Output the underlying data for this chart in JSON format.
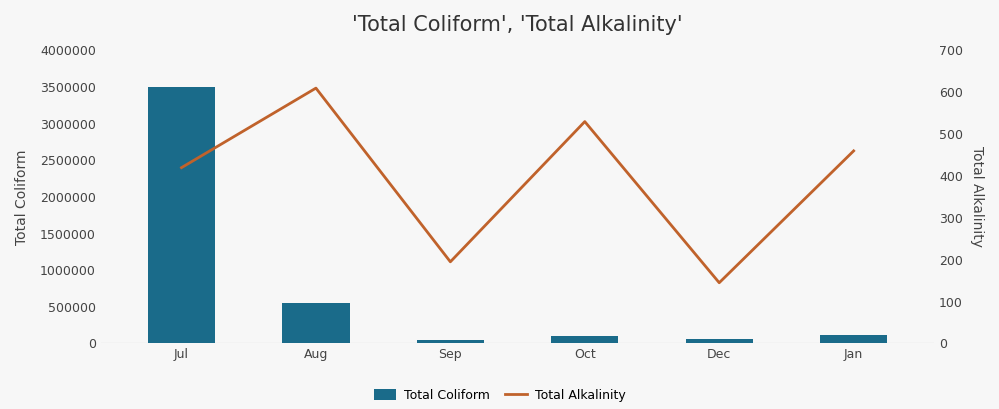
{
  "title": "'Total Coliform', 'Total Alkalinity'",
  "categories": [
    "Jul",
    "Aug",
    "Sep",
    "Oct",
    "Dec",
    "Jan"
  ],
  "bar_values": [
    3500000,
    550000,
    50000,
    100000,
    55000,
    120000
  ],
  "line_values": [
    420,
    610,
    195,
    530,
    145,
    460
  ],
  "bar_color": "#1a6b8a",
  "line_color": "#c0622b",
  "ylabel_left": "Total Coliform",
  "ylabel_right": "Total Alkalinity",
  "ylim_left": [
    0,
    4000000
  ],
  "ylim_right": [
    0,
    700
  ],
  "background_color": "#f7f7f7",
  "legend_bar": "Total Coliform",
  "legend_line": "Total Alkalinity",
  "title_fontsize": 15,
  "label_fontsize": 10,
  "tick_fontsize": 9,
  "yticks_left": [
    0,
    500000,
    1000000,
    1500000,
    2000000,
    2500000,
    3000000,
    3500000,
    4000000
  ],
  "ytick_labels_left": [
    "0",
    "500000",
    "1000000",
    "1500000",
    "2000000",
    "2500000",
    "3000000",
    "3500000",
    "4000000"
  ],
  "yticks_right": [
    0,
    100,
    200,
    300,
    400,
    500,
    600,
    700
  ],
  "ytick_labels_right": [
    "0",
    "100",
    "200",
    "300",
    "400",
    "500",
    "600",
    "700"
  ]
}
